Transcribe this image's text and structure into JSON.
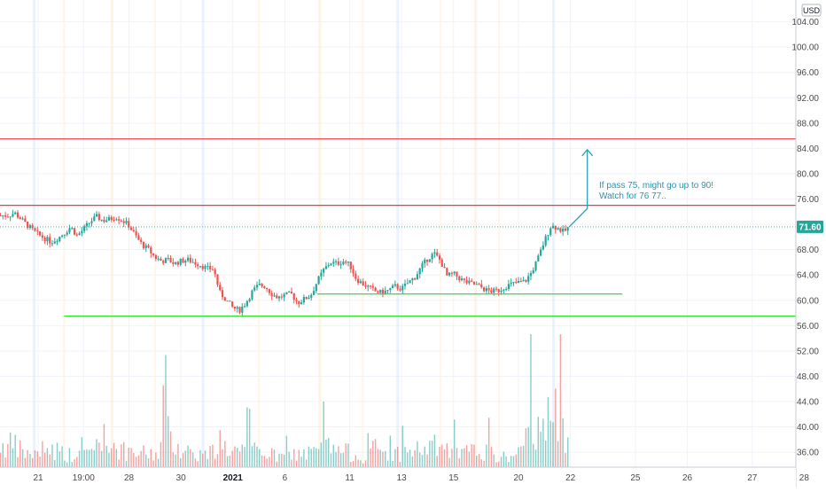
{
  "chart_data": {
    "type": "candlestick",
    "currency": "USD",
    "last_price": "71.60",
    "y_ticks": [
      "104.00",
      "100.00",
      "96.00",
      "92.00",
      "88.00",
      "84.00",
      "80.00",
      "76.00",
      "72.00",
      "68.00",
      "64.00",
      "60.00",
      "56.00",
      "52.00",
      "48.00",
      "44.00",
      "40.00",
      "36.00"
    ],
    "y_range": [
      34.5,
      107
    ],
    "x_ticks": [
      {
        "label": "21",
        "day": 0
      },
      {
        "label": "19:00",
        "day": 3.5
      },
      {
        "label": "28",
        "day": 7
      },
      {
        "label": "30",
        "day": 11
      },
      {
        "label": "2021",
        "day": 15,
        "bold": true
      },
      {
        "label": "6",
        "day": 19
      },
      {
        "label": "11",
        "day": 24
      },
      {
        "label": "13",
        "day": 28
      },
      {
        "label": "15",
        "day": 32
      },
      {
        "label": "20",
        "day": 37
      },
      {
        "label": "22",
        "day": 41
      },
      {
        "label": "25",
        "day": 46
      },
      {
        "label": "26",
        "day": 50
      },
      {
        "label": "27",
        "day": 55
      },
      {
        "label": "28",
        "day": 59
      }
    ],
    "close_path": [
      [
        -2.3,
        73.4
      ],
      [
        -1.8,
        73.8
      ],
      [
        -1.2,
        72.6
      ],
      [
        -0.5,
        71.2
      ],
      [
        0,
        70.4
      ],
      [
        0.5,
        69.8
      ],
      [
        1,
        69.2
      ],
      [
        1.5,
        69.8
      ],
      [
        2,
        70.6
      ],
      [
        2.5,
        71.6
      ],
      [
        3,
        70.2
      ],
      [
        3.5,
        71.2
      ],
      [
        4,
        72.4
      ],
      [
        4.5,
        73.2
      ],
      [
        5,
        72.6
      ],
      [
        5.5,
        72.8
      ],
      [
        6,
        73.2
      ],
      [
        6.5,
        72.6
      ],
      [
        7,
        71.8
      ],
      [
        7.5,
        70.2
      ],
      [
        8,
        68.8
      ],
      [
        8.5,
        68.0
      ],
      [
        9,
        66.8
      ],
      [
        9.5,
        66.2
      ],
      [
        10,
        66.4
      ],
      [
        10.5,
        65.8
      ],
      [
        11,
        66.2
      ],
      [
        11.5,
        66.4
      ],
      [
        12,
        66.0
      ],
      [
        12.5,
        65.6
      ],
      [
        13,
        65.0
      ],
      [
        13.5,
        65.0
      ],
      [
        14,
        61.2
      ],
      [
        14.5,
        60.0
      ],
      [
        15,
        58.8
      ],
      [
        15.5,
        58.4
      ],
      [
        16,
        59.6
      ],
      [
        16.5,
        61.4
      ],
      [
        17,
        62.4
      ],
      [
        17.5,
        62.2
      ],
      [
        18,
        61.0
      ],
      [
        18.5,
        60.4
      ],
      [
        19,
        60.8
      ],
      [
        19.5,
        61.0
      ],
      [
        20,
        59.6
      ],
      [
        20.5,
        60.2
      ],
      [
        21,
        60.8
      ],
      [
        21.5,
        63.0
      ],
      [
        22,
        64.8
      ],
      [
        22.5,
        66.0
      ],
      [
        23,
        65.8
      ],
      [
        23.5,
        66.2
      ],
      [
        24,
        65.6
      ],
      [
        24.5,
        63.4
      ],
      [
        25,
        62.6
      ],
      [
        25.5,
        62.0
      ],
      [
        26,
        61.4
      ],
      [
        26.5,
        61.2
      ],
      [
        27,
        61.6
      ],
      [
        27.5,
        62.2
      ],
      [
        28,
        61.8
      ],
      [
        28.5,
        62.8
      ],
      [
        29,
        63.6
      ],
      [
        29.5,
        65.2
      ],
      [
        30,
        66.6
      ],
      [
        30.5,
        67.4
      ],
      [
        31,
        66.2
      ],
      [
        31.5,
        63.8
      ],
      [
        32,
        64.2
      ],
      [
        32.5,
        63.4
      ],
      [
        33,
        62.8
      ],
      [
        33.5,
        62.6
      ],
      [
        34,
        62.2
      ],
      [
        34.5,
        61.6
      ],
      [
        35,
        61.4
      ],
      [
        35.5,
        61.6
      ],
      [
        36,
        62.2
      ],
      [
        36.5,
        62.6
      ],
      [
        37,
        62.8
      ],
      [
        37.5,
        63.0
      ],
      [
        38,
        64.4
      ],
      [
        38.5,
        66.6
      ],
      [
        39,
        69.4
      ],
      [
        39.5,
        71.8
      ],
      [
        40,
        71.4
      ],
      [
        40.5,
        70.8
      ],
      [
        40.9,
        71.6
      ]
    ],
    "volume_path": [
      [
        -2,
        9
      ],
      [
        -1,
        6
      ],
      [
        0,
        5
      ],
      [
        1,
        8
      ],
      [
        2,
        6
      ],
      [
        3,
        4
      ],
      [
        4,
        7
      ],
      [
        5,
        12
      ],
      [
        6,
        9
      ],
      [
        7,
        5
      ],
      [
        8,
        6
      ],
      [
        9,
        5
      ],
      [
        10,
        14
      ],
      [
        11,
        8
      ],
      [
        12,
        6
      ],
      [
        13,
        5
      ],
      [
        14,
        9
      ],
      [
        15,
        7
      ],
      [
        16,
        6
      ],
      [
        17,
        8
      ],
      [
        18,
        5
      ],
      [
        19,
        4
      ],
      [
        20,
        6
      ],
      [
        21,
        5
      ],
      [
        22,
        9
      ],
      [
        23,
        7
      ],
      [
        24,
        6
      ],
      [
        25,
        4
      ],
      [
        26,
        8
      ],
      [
        27,
        5
      ],
      [
        28,
        6
      ],
      [
        29,
        7
      ],
      [
        30,
        8
      ],
      [
        31,
        9
      ],
      [
        32,
        5
      ],
      [
        33,
        6
      ],
      [
        34,
        7
      ],
      [
        35,
        5
      ],
      [
        36,
        4
      ],
      [
        37,
        6
      ],
      [
        37.5,
        8
      ],
      [
        38,
        22
      ],
      [
        38.5,
        14
      ],
      [
        39,
        32
      ],
      [
        39.5,
        26
      ],
      [
        40,
        18
      ],
      [
        40.5,
        16
      ],
      [
        40.9,
        6
      ]
    ],
    "horizontal_lines": [
      {
        "name": "resistance-85.5",
        "price": 85.5,
        "x_start_day": -3,
        "x_end_day": 60,
        "color": "#f23645"
      },
      {
        "name": "resistance-75",
        "price": 75.0,
        "x_start_day": -3,
        "x_end_day": 60,
        "color": "#f23645"
      },
      {
        "name": "support-57.5",
        "price": 57.5,
        "x_start_day": 2,
        "x_end_day": 60,
        "color": "#2fe52b"
      },
      {
        "name": "support-61",
        "price": 61.0,
        "x_start_day": 21.5,
        "x_end_day": 45,
        "color": "#2fe52b"
      }
    ],
    "projection_arrow": {
      "from": [
        40.9,
        71.6
      ],
      "to": [
        42.3,
        83.8
      ],
      "color": "#26a0b8"
    },
    "annotation": {
      "line1": "If pass 75, might go up to 90!",
      "line2": "Watch for 76 77..",
      "color": "#26a0b8"
    },
    "colors": {
      "up": "#26a69a",
      "down": "#ef5350",
      "grid": "#f0f3fa"
    }
  }
}
